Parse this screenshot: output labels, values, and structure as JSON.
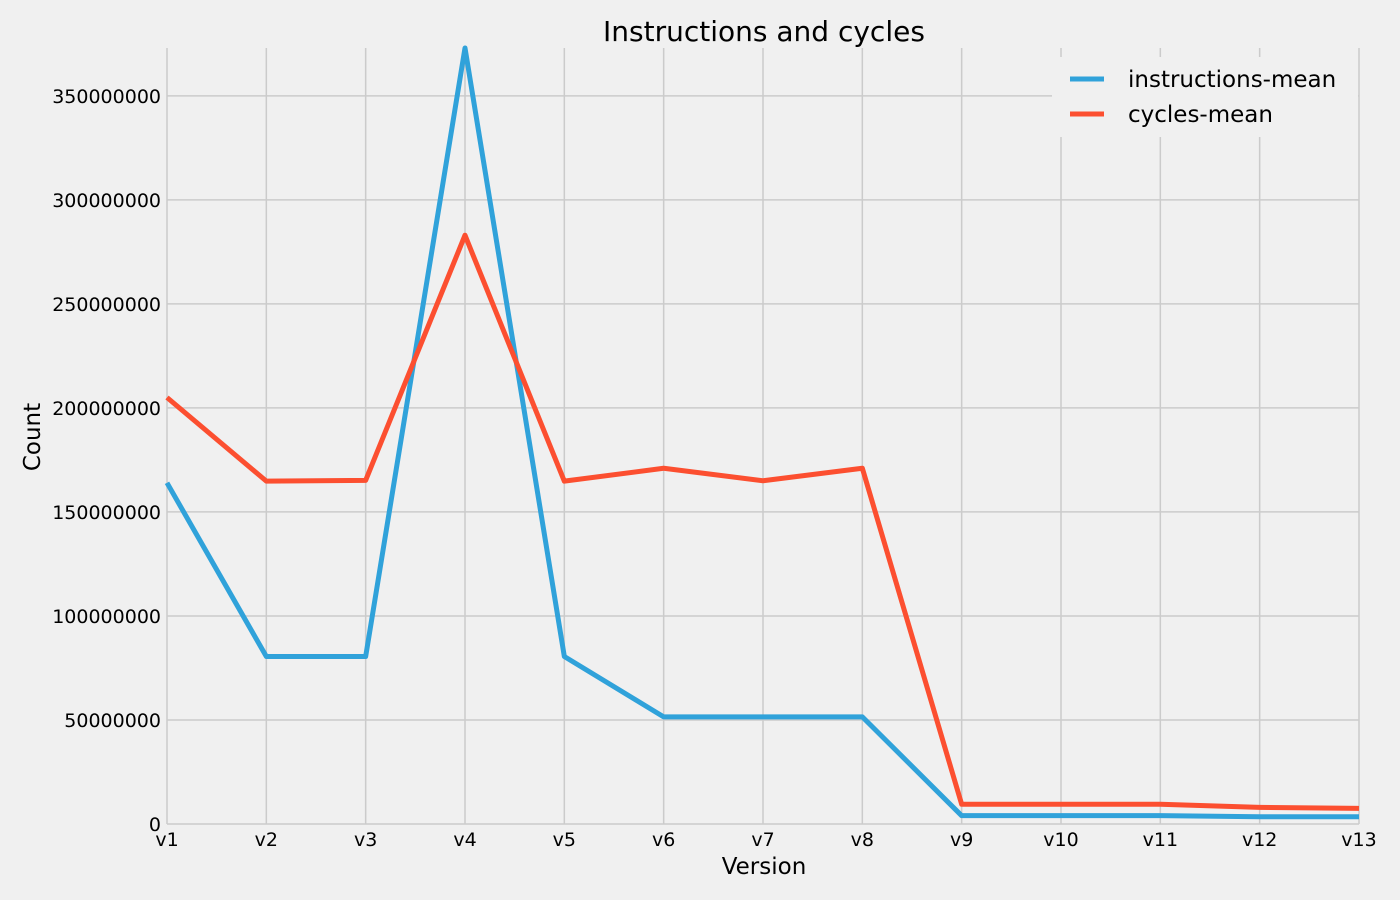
{
  "chart_data": {
    "type": "line",
    "title": "Instructions and cycles",
    "xlabel": "Version",
    "ylabel": "Count",
    "categories": [
      "v1",
      "v2",
      "v3",
      "v4",
      "v5",
      "v6",
      "v7",
      "v8",
      "v9",
      "v10",
      "v11",
      "v12",
      "v13"
    ],
    "y_ticks": [
      "0",
      "50000000",
      "100000000",
      "150000000",
      "200000000",
      "250000000",
      "300000000",
      "350000000"
    ],
    "ylim": [
      0,
      373000000
    ],
    "grid": true,
    "legend_position": "top-right",
    "series": [
      {
        "name": "instructions-mean",
        "color": "#30a2da",
        "values": [
          164000000,
          80500000,
          80500000,
          373000000,
          80500000,
          51500000,
          51500000,
          51500000,
          4000000,
          4000000,
          4000000,
          3500000,
          3500000
        ]
      },
      {
        "name": "cycles-mean",
        "color": "#fc4f30",
        "values": [
          205000000,
          164800000,
          165200000,
          283000000,
          164800000,
          171000000,
          165000000,
          171000000,
          9500000,
          9500000,
          9500000,
          8000000,
          7500000
        ]
      }
    ]
  }
}
